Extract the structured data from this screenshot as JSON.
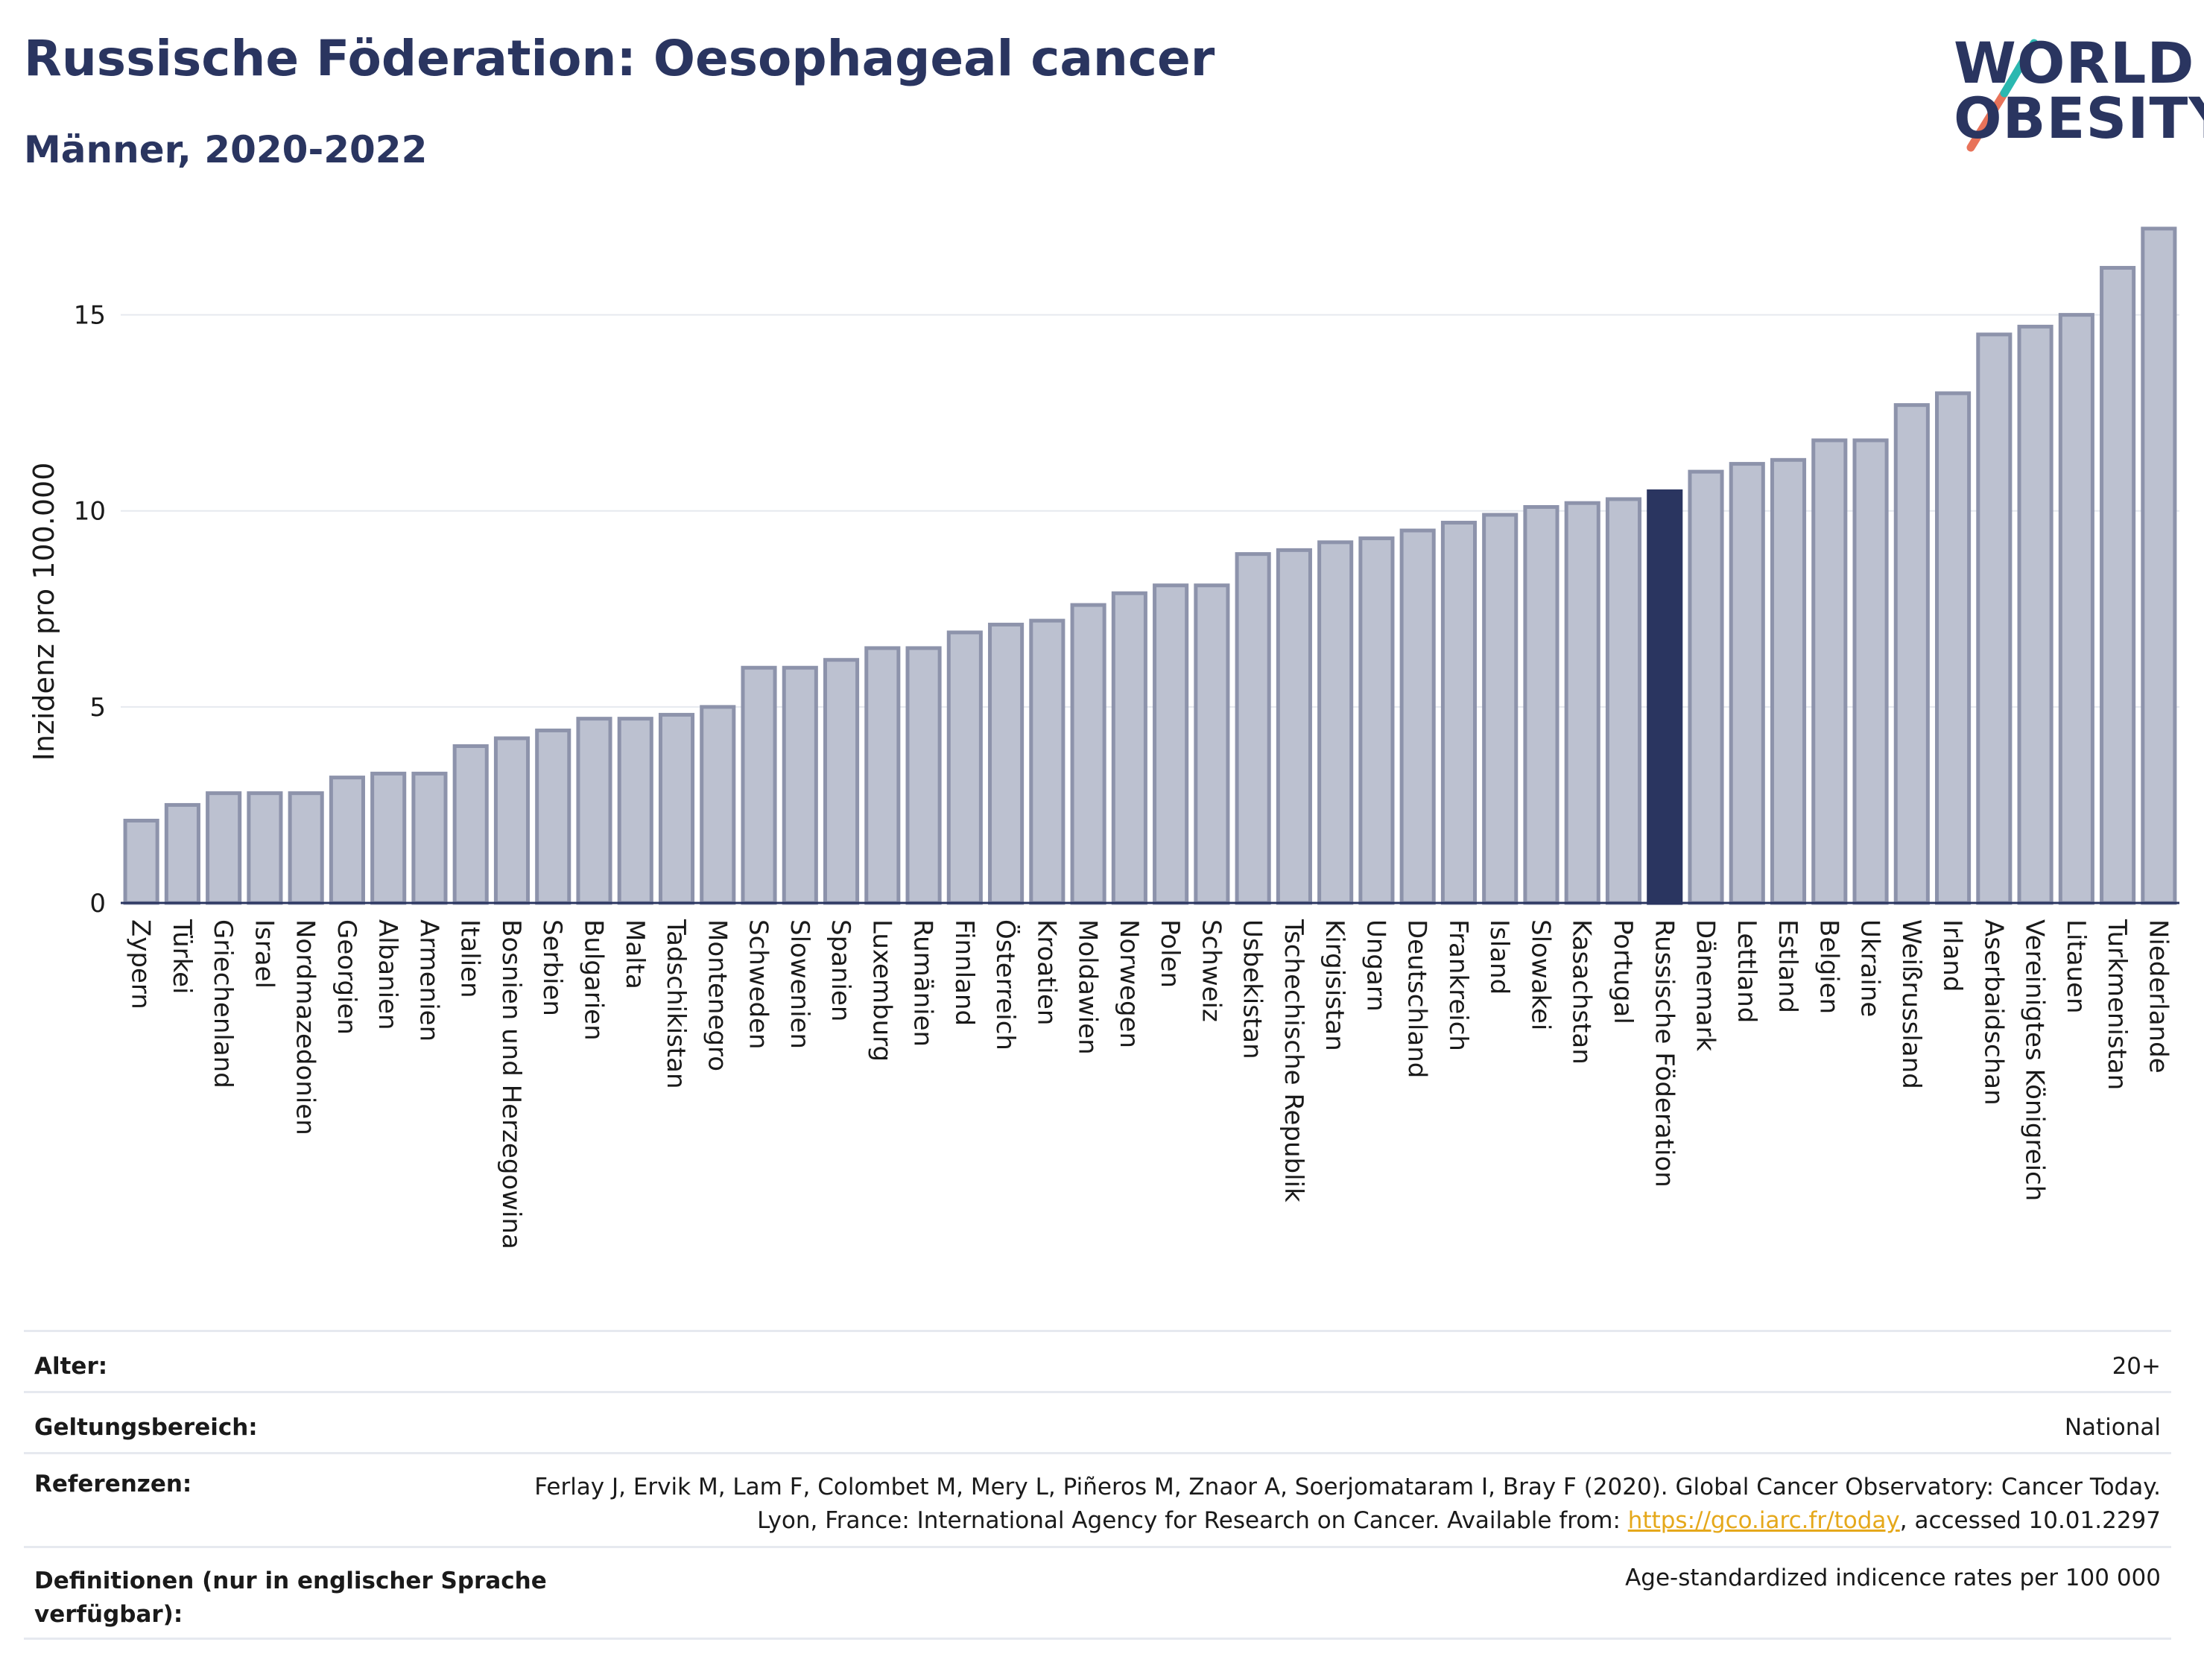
{
  "header": {
    "title": "Russische Föderation: Oesophageal cancer",
    "subtitle": "Männer, 2020-2022"
  },
  "logo": {
    "line1": "WORLD",
    "line2": "OBESITY"
  },
  "colors": {
    "highlight": "#2a3560",
    "bar": "#bcc1d0",
    "bar_edge": "#8d93ab",
    "title": "#2a3560",
    "link": "#e5a81b"
  },
  "chart_data": {
    "type": "bar",
    "title": "",
    "xlabel": "",
    "ylabel": "Inzidenz pro 100.000",
    "ylim": [
      0,
      17.9
    ],
    "yticks": [
      0,
      5,
      10,
      15
    ],
    "grid": true,
    "highlight": "Russische Föderation",
    "categories": [
      "Zypern",
      "Türkei",
      "Griechenland",
      "Israel",
      "Nordmazedonien",
      "Georgien",
      "Albanien",
      "Armenien",
      "Italien",
      "Bosnien und Herzegowina",
      "Serbien",
      "Bulgarien",
      "Malta",
      "Tadschikistan",
      "Montenegro",
      "Schweden",
      "Slowenien",
      "Spanien",
      "Luxemburg",
      "Rumänien",
      "Finnland",
      "Österreich",
      "Kroatien",
      "Moldawien",
      "Norwegen",
      "Polen",
      "Schweiz",
      "Usbekistan",
      "Tschechische Republik",
      "Kirgisistan",
      "Ungarn",
      "Deutschland",
      "Frankreich",
      "Island",
      "Slowakei",
      "Kasachstan",
      "Portugal",
      "Russische Föderation",
      "Dänemark",
      "Lettland",
      "Estland",
      "Belgien",
      "Ukraine",
      "Weißrussland",
      "Irland",
      "Aserbaidschan",
      "Vereinigtes Königreich",
      "Litauen",
      "Turkmenistan",
      "Niederlande"
    ],
    "values": [
      2.1,
      2.5,
      2.8,
      2.8,
      2.8,
      3.2,
      3.3,
      3.3,
      4.0,
      4.2,
      4.4,
      4.7,
      4.7,
      4.8,
      5.0,
      6.0,
      6.0,
      6.2,
      6.5,
      6.5,
      6.9,
      7.1,
      7.2,
      7.6,
      7.9,
      8.1,
      8.1,
      8.9,
      9.0,
      9.2,
      9.3,
      9.5,
      9.7,
      9.9,
      10.1,
      10.2,
      10.3,
      10.5,
      11.0,
      11.2,
      11.3,
      11.8,
      11.8,
      12.7,
      13.0,
      14.5,
      14.7,
      15.0,
      16.2,
      17.2
    ]
  },
  "info": {
    "age_label": "Alter:",
    "age_value": "20+",
    "scope_label": "Geltungsbereich:",
    "scope_value": "National",
    "ref_label": "Referenzen:",
    "ref_text_1": "Ferlay J, Ervik M, Lam F, Colombet M, Mery L, Piñeros M, Znaor A, Soerjomataram I, Bray F (2020). Global Cancer Observatory: Cancer Today. Lyon, France: International Agency for Research on Cancer. Available from: ",
    "ref_link": "https://gco.iarc.fr/today",
    "ref_text_2": ", accessed 10.01.2297",
    "def_label": "Definitionen (nur in englischer Sprache verfügbar):",
    "def_value": "Age-standardized indicence rates per 100 000"
  }
}
